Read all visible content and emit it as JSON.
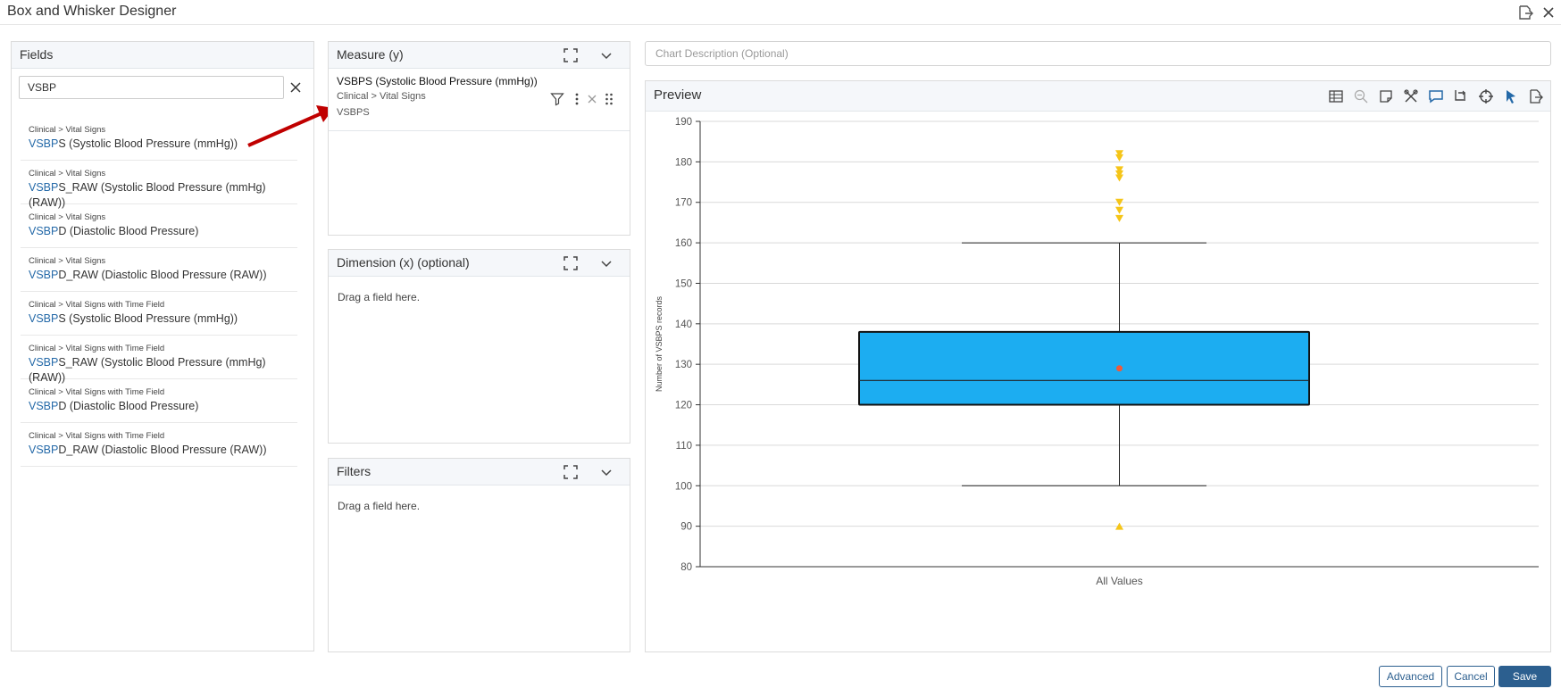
{
  "app": {
    "title": "Box and Whisker Designer"
  },
  "fields_panel": {
    "title": "Fields",
    "search_value": "VSBP",
    "items": [
      {
        "path": "Clinical > Vital Signs",
        "match": "VSBP",
        "rest": "S (Systolic Blood Pressure (mmHg))"
      },
      {
        "path": "Clinical > Vital Signs",
        "match": "VSBP",
        "rest": "S_RAW (Systolic Blood Pressure (mmHg) (RAW))"
      },
      {
        "path": "Clinical > Vital Signs",
        "match": "VSBP",
        "rest": "D (Diastolic Blood Pressure)"
      },
      {
        "path": "Clinical > Vital Signs",
        "match": "VSBP",
        "rest": "D_RAW (Diastolic Blood Pressure (RAW))"
      },
      {
        "path": "Clinical > Vital Signs with Time Field",
        "match": "VSBP",
        "rest": "S (Systolic Blood Pressure (mmHg))"
      },
      {
        "path": "Clinical > Vital Signs with Time Field",
        "match": "VSBP",
        "rest": "S_RAW (Systolic Blood Pressure (mmHg) (RAW))"
      },
      {
        "path": "Clinical > Vital Signs with Time Field",
        "match": "VSBP",
        "rest": "D (Diastolic Blood Pressure)"
      },
      {
        "path": "Clinical > Vital Signs with Time Field",
        "match": "VSBP",
        "rest": "D_RAW (Diastolic Blood Pressure (RAW))"
      }
    ]
  },
  "measure_panel": {
    "title": "Measure (y)",
    "field_name": "VSBPS (Systolic Blood Pressure (mmHg))",
    "field_path": "Clinical > Vital Signs",
    "field_code": "VSBPS"
  },
  "dimension_panel": {
    "title": "Dimension (x) (optional)",
    "hint": "Drag a field here."
  },
  "filters_panel": {
    "title": "Filters",
    "hint": "Drag a field here."
  },
  "chart_description": {
    "value": "",
    "placeholder": "Chart Description (Optional)"
  },
  "preview": {
    "title": "Preview",
    "tools": [
      "table-icon",
      "zoom-out-icon",
      "note-icon",
      "tools-icon",
      "comment-icon",
      "swap-axes-icon",
      "crosshair-icon",
      "pointer-icon",
      "export-icon"
    ]
  },
  "chart_data": {
    "type": "box",
    "title": "",
    "xlabel": "",
    "ylabel": "Number of VSBPS records",
    "categories": [
      "All Values"
    ],
    "ylim": [
      80,
      190
    ],
    "yticks": [
      80,
      90,
      100,
      110,
      120,
      130,
      140,
      150,
      160,
      170,
      180,
      190
    ],
    "grid": true,
    "box": {
      "whisker_low": 100,
      "q1": 120,
      "median": 126,
      "q3": 138,
      "whisker_high": 160,
      "mean": 129
    },
    "outliers_high": [
      166,
      168,
      170,
      176,
      177,
      178,
      181,
      182
    ],
    "outliers_low": [
      90
    ],
    "colors": {
      "box_fill": "#1cadf1",
      "mean_marker": "#f05a3a",
      "outlier": "#f5c518"
    }
  },
  "actions": {
    "advanced": "Advanced",
    "cancel": "Cancel",
    "save": "Save"
  },
  "colors": {
    "accent": "#2c5f8f",
    "link": "#2469a8",
    "annotation_arrow": "#c00000"
  }
}
